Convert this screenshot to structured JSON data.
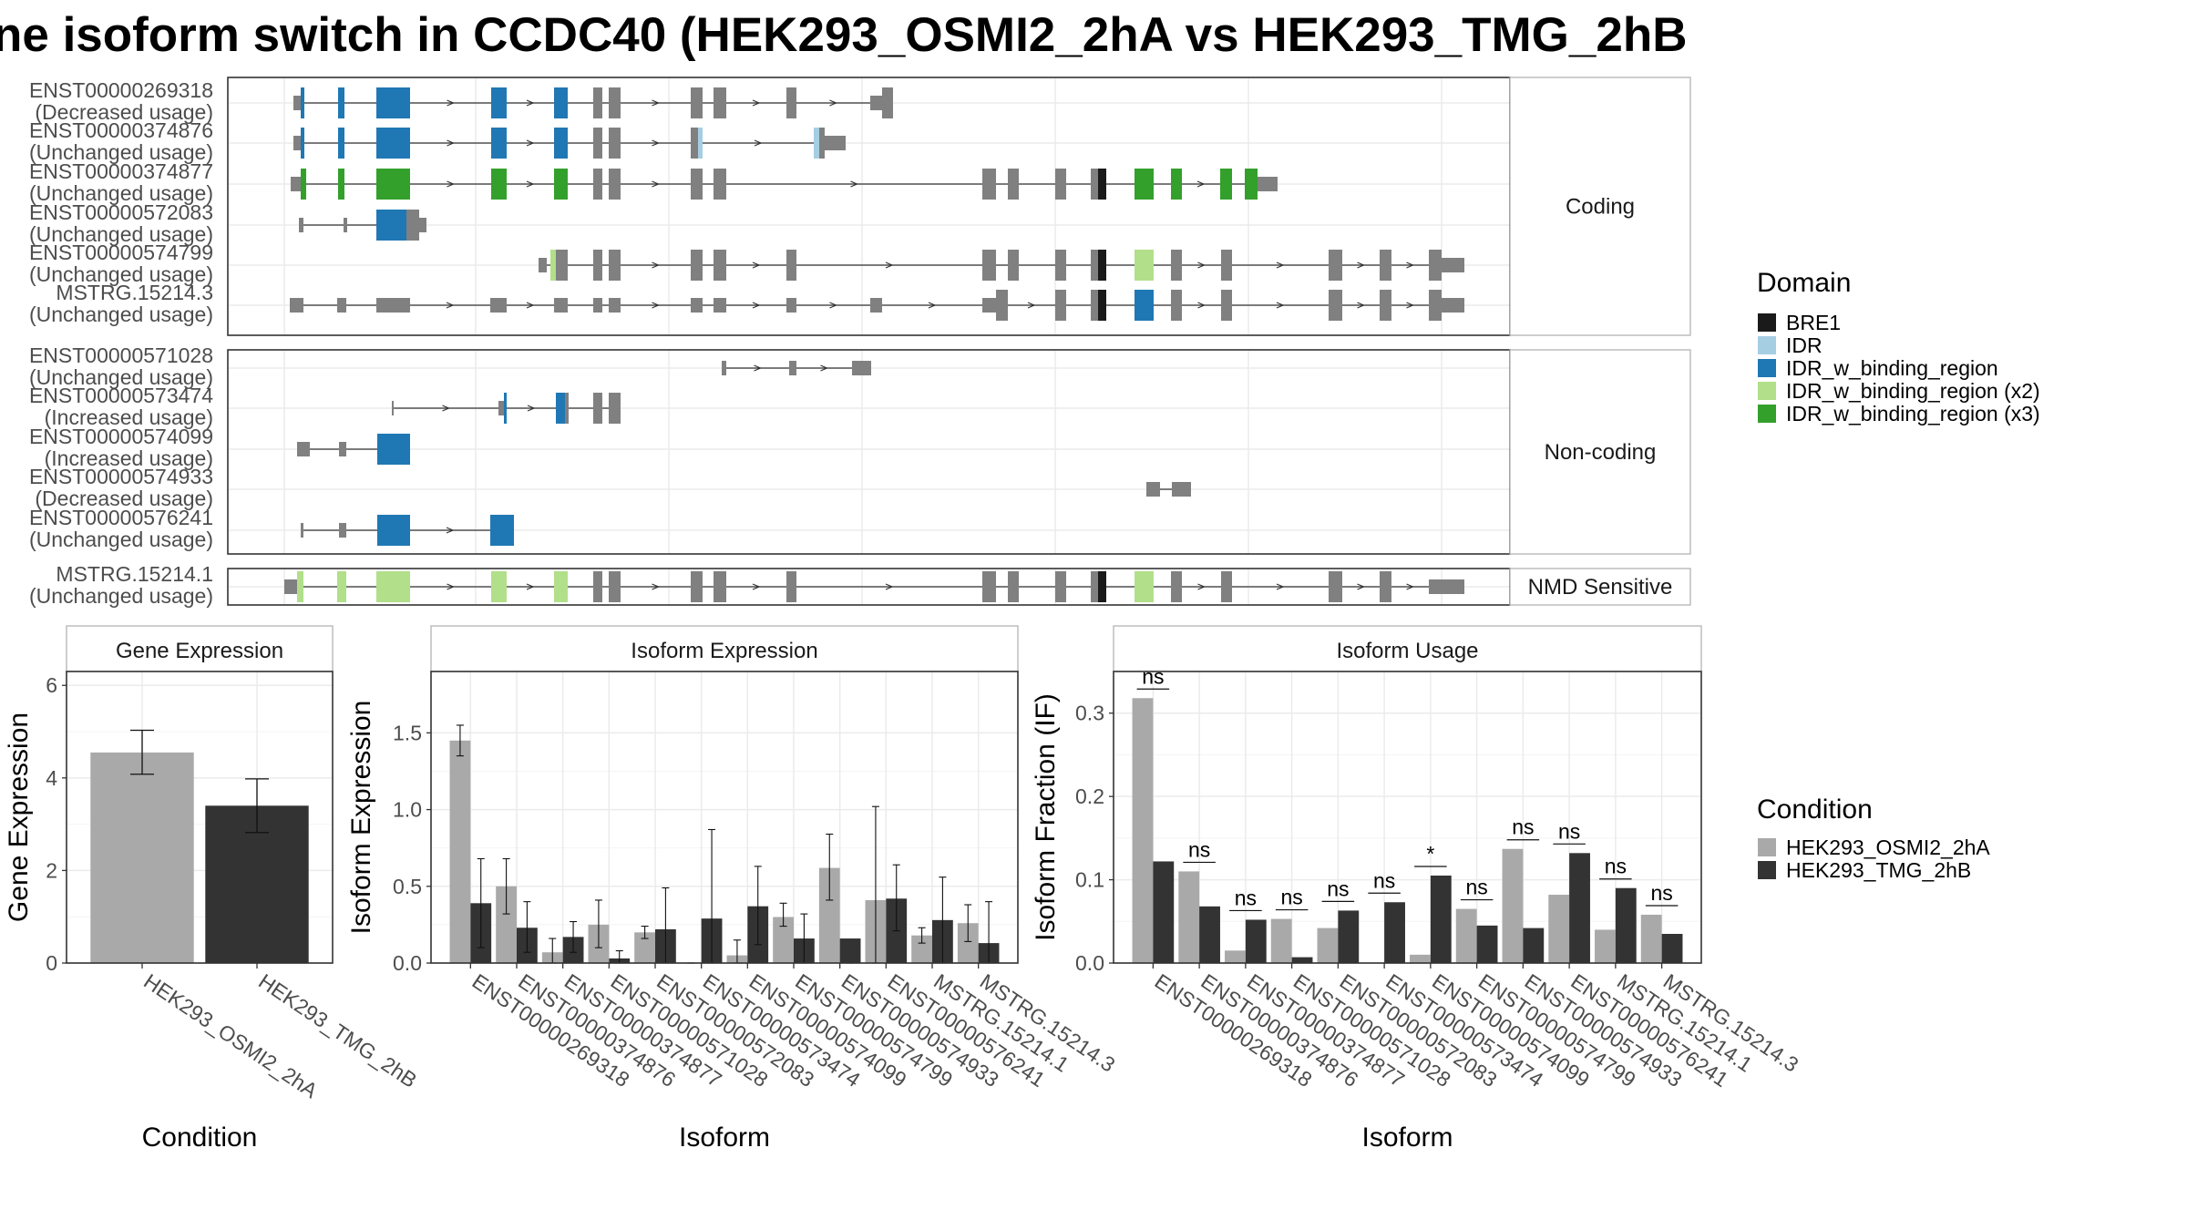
{
  "title": "ne isoform switch in CCDC40 (HEK293_OSMI2_2hA vs HEK293_TMG_2hB",
  "colors": {
    "BRE1": "#1a1a1a",
    "IDR": "#a6cee3",
    "IDR_w_binding_region": "#1f78b4",
    "IDR_w_binding_region (x2)": "#b2df8a",
    "IDR_w_binding_region (x3)": "#33a02c",
    "none": "#808080",
    "HEK293_OSMI2_2hA": "#a9a9a9",
    "HEK293_TMG_2hB": "#333333"
  },
  "transcript_panels": [
    {
      "label": "Coding",
      "transcripts": [
        {
          "id": "ENST00000269318",
          "usage": "(Decreased usage)"
        },
        {
          "id": "ENST00000374876",
          "usage": "(Unchanged usage)"
        },
        {
          "id": "ENST00000374877",
          "usage": "(Unchanged usage)"
        },
        {
          "id": "ENST00000572083",
          "usage": "(Unchanged usage)"
        },
        {
          "id": "ENST00000574799",
          "usage": "(Unchanged usage)"
        },
        {
          "id": "MSTRG.15214.3",
          "usage": "(Unchanged usage)"
        }
      ]
    },
    {
      "label": "Non-coding",
      "transcripts": [
        {
          "id": "ENST00000571028",
          "usage": "(Unchanged usage)"
        },
        {
          "id": "ENST00000573474",
          "usage": "(Increased usage)"
        },
        {
          "id": "ENST00000574099",
          "usage": "(Increased usage)"
        },
        {
          "id": "ENST00000574933",
          "usage": "(Decreased usage)"
        },
        {
          "id": "ENST00000576241",
          "usage": "(Unchanged usage)"
        }
      ]
    },
    {
      "label": "NMD Sensitive",
      "transcripts": [
        {
          "id": "MSTRG.15214.1",
          "usage": "(Unchanged usage)"
        }
      ]
    }
  ],
  "domain_legend": {
    "title": "Domain",
    "items": [
      "BRE1",
      "IDR",
      "IDR_w_binding_region",
      "IDR_w_binding_region (x2)",
      "IDR_w_binding_region (x3)"
    ]
  },
  "condition_legend": {
    "title": "Condition",
    "items": [
      "HEK293_OSMI2_2hA",
      "HEK293_TMG_2hB"
    ]
  },
  "chart_data": [
    {
      "type": "bar",
      "strip": "Gene Expression",
      "categories": [
        "HEK293_OSMI2_2hA",
        "HEK293_TMG_2hB"
      ],
      "values": [
        4.55,
        3.4
      ],
      "error": [
        [
          4.08,
          5.03
        ],
        [
          2.82,
          3.98
        ]
      ],
      "xlabel": "Condition",
      "ylabel": "Gene Expression",
      "ylim": [
        0,
        6.3
      ],
      "yticks": [
        0,
        2,
        4,
        6
      ]
    },
    {
      "type": "bar",
      "strip": "Isoform Expression",
      "categories": [
        "ENST00000269318",
        "ENST00000374876",
        "ENST00000374877",
        "ENST00000571028",
        "ENST00000572083",
        "ENST00000573474",
        "ENST00000574099",
        "ENST00000574799",
        "ENST00000574933",
        "ENST00000576241",
        "MSTRG.15214.1",
        "MSTRG.15214.3"
      ],
      "series": [
        {
          "name": "HEK293_OSMI2_2hA",
          "values": [
            1.45,
            0.5,
            0.07,
            0.25,
            0.2,
            0.0,
            0.05,
            0.3,
            0.62,
            0.41,
            0.18,
            0.26
          ],
          "error": [
            [
              1.35,
              1.55
            ],
            [
              0.32,
              0.68
            ],
            [
              0.0,
              0.16
            ],
            [
              0.1,
              0.41
            ],
            [
              0.16,
              0.24
            ],
            [
              0.0,
              0.0
            ],
            [
              0.0,
              0.15
            ],
            [
              0.24,
              0.39
            ],
            [
              0.41,
              0.84
            ],
            [
              0.0,
              1.02
            ],
            [
              0.13,
              0.23
            ],
            [
              0.14,
              0.38
            ]
          ]
        },
        {
          "name": "HEK293_TMG_2hB",
          "values": [
            0.39,
            0.23,
            0.17,
            0.03,
            0.22,
            0.29,
            0.37,
            0.16,
            0.16,
            0.42,
            0.28,
            0.13
          ],
          "error": [
            [
              0.1,
              0.68
            ],
            [
              0.07,
              0.4
            ],
            [
              0.07,
              0.27
            ],
            [
              0.0,
              0.08
            ],
            [
              0.0,
              0.49
            ],
            [
              0.0,
              0.87
            ],
            [
              0.12,
              0.63
            ],
            [
              0.0,
              0.32
            ],
            [
              0.0,
              0.0
            ],
            [
              0.21,
              0.64
            ],
            [
              0.0,
              0.56
            ],
            [
              0.0,
              0.4
            ]
          ]
        }
      ],
      "xlabel": "Isoform",
      "ylabel": "Isoform Expression",
      "ylim": [
        0,
        1.9
      ],
      "yticks": [
        0.0,
        0.5,
        1.0,
        1.5
      ]
    },
    {
      "type": "bar",
      "strip": "Isoform Usage",
      "categories": [
        "ENST00000269318",
        "ENST00000374876",
        "ENST00000374877",
        "ENST00000571028",
        "ENST00000572083",
        "ENST00000573474",
        "ENST00000574099",
        "ENST00000574799",
        "ENST00000574933",
        "ENST00000576241",
        "MSTRG.15214.1",
        "MSTRG.15214.3"
      ],
      "series": [
        {
          "name": "HEK293_OSMI2_2hA",
          "values": [
            0.318,
            0.11,
            0.015,
            0.053,
            0.042,
            0.0,
            0.01,
            0.065,
            0.137,
            0.082,
            0.04,
            0.058
          ]
        },
        {
          "name": "HEK293_TMG_2hB",
          "values": [
            0.122,
            0.068,
            0.052,
            0.007,
            0.063,
            0.073,
            0.105,
            0.045,
            0.042,
            0.132,
            0.09,
            0.035
          ]
        }
      ],
      "significance": [
        "ns",
        "ns",
        "ns",
        "ns",
        "ns",
        "ns",
        "*",
        "ns",
        "ns",
        "ns",
        "ns",
        "ns"
      ],
      "xlabel": "Isoform",
      "ylabel": "Isoform Fraction (IF)",
      "ylim": [
        0,
        0.35
      ],
      "yticks": [
        0.0,
        0.1,
        0.2,
        0.3
      ]
    }
  ]
}
